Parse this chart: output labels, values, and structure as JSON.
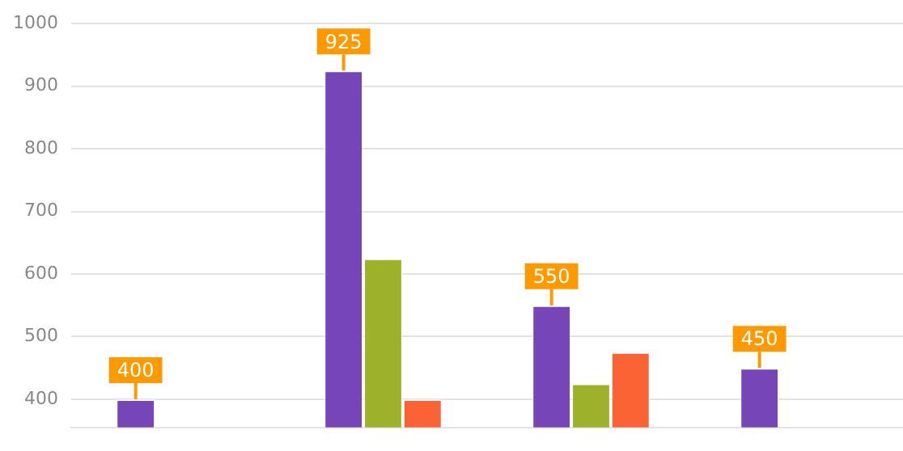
{
  "chart_data": {
    "type": "bar",
    "categories": [
      null,
      null,
      null,
      null
    ],
    "series": [
      {
        "color": "#7646b8",
        "values": [
          400,
          925,
          550,
          450
        ],
        "value_labels": [
          "400",
          "925",
          "550",
          "450"
        ]
      },
      {
        "color": "#9eb12a",
        "values": [
          null,
          625,
          425,
          null
        ]
      },
      {
        "color": "#fb6234",
        "values": [
          null,
          400,
          475,
          null
        ]
      }
    ],
    "ylim": [
      355,
      1000
    ],
    "yticks": [
      400,
      500,
      600,
      700,
      800,
      900,
      1000
    ],
    "grid": "y",
    "legend": false,
    "tick_labels": "y"
  }
}
